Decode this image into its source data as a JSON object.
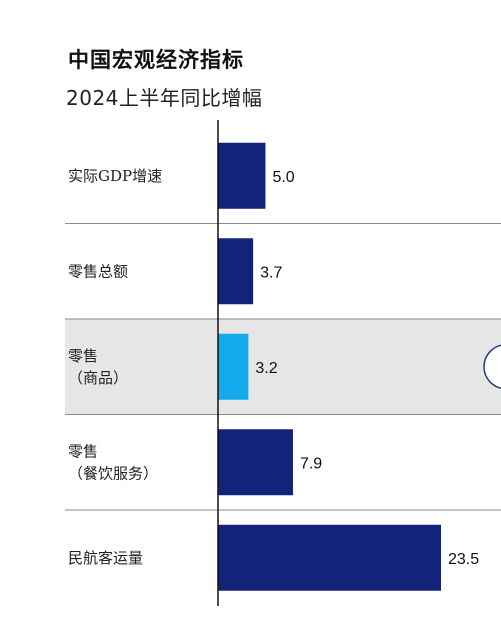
{
  "title": "中国宏观经济指标",
  "subtitle": "2024上半年同比增幅",
  "colors": {
    "bar": "#13237a",
    "bar_highlight": "#12aaea",
    "row_highlight_bg": "#e6e6e6",
    "separator": "#8a8a8a",
    "axis": "#111111"
  },
  "chart_data": {
    "type": "bar",
    "orientation": "horizontal",
    "title": "中国宏观经济指标",
    "subtitle": "2024上半年同比增幅",
    "categories": [
      [
        "实际GDP增速"
      ],
      [
        "零售总额"
      ],
      [
        "零售",
        "（商品）"
      ],
      [
        "零售",
        "（餐饮服务）"
      ],
      [
        "民航客运量"
      ]
    ],
    "values": [
      5.0,
      3.7,
      3.2,
      7.9,
      23.5
    ],
    "value_labels": [
      "5.0",
      "3.7",
      "3.2",
      "7.9",
      "23.5"
    ],
    "highlighted_index": 2,
    "xlim": [
      0,
      23.5
    ],
    "grid": false,
    "legend": "none"
  }
}
